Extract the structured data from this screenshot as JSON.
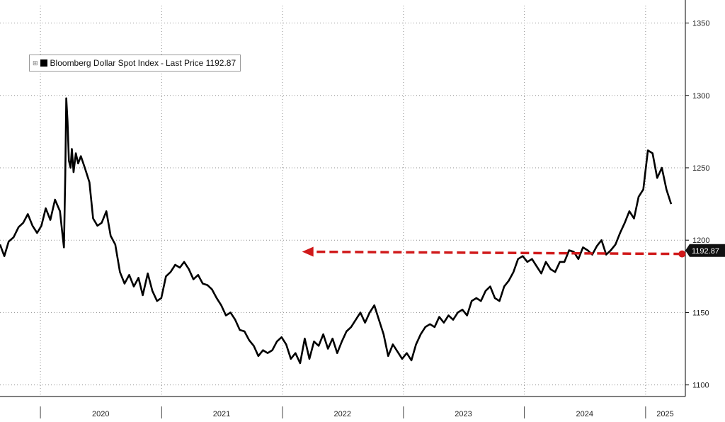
{
  "colors": {
    "line": "#000000",
    "arrow": "#d0191a",
    "grid": "#8f8f8f",
    "background": "#ffffff",
    "last_price_tag": "#111111"
  },
  "legend": {
    "toggle_icon": "square-plus-icon",
    "series_name": "Bloomberg Dollar Spot Index",
    "separator": "-",
    "metric": "Last Price",
    "value": "1192.87"
  },
  "chart_data": {
    "type": "line",
    "title": "",
    "xlabel": "",
    "ylabel": "",
    "legend_placement": "top-left",
    "grid": true,
    "y_axis_side": "right",
    "ylim": [
      1092,
      1362
    ],
    "xlim": [
      "2019-09-01",
      "2025-05-01"
    ],
    "y_ticks": [
      1100,
      1150,
      1200,
      1250,
      1300,
      1350
    ],
    "x_tick_labels": [
      {
        "label": "2020",
        "date": "2020-07-01"
      },
      {
        "label": "2021",
        "date": "2021-07-01"
      },
      {
        "label": "2022",
        "date": "2022-07-01"
      },
      {
        "label": "2023",
        "date": "2023-07-01"
      },
      {
        "label": "2024",
        "date": "2024-07-01"
      },
      {
        "label": "2025",
        "date": "2025-03-01"
      }
    ],
    "year_separators": [
      "2020-01-01",
      "2021-01-01",
      "2022-01-01",
      "2023-01-01",
      "2024-01-01",
      "2025-01-01"
    ],
    "last_price": {
      "label": "1192.87",
      "value": 1192.87,
      "date": "2025-04-21"
    },
    "annotation": {
      "type": "dashed-arrow",
      "from": {
        "date": "2025-04-21",
        "value": 1190.5
      },
      "to": {
        "date": "2022-03-01",
        "value": 1192
      }
    },
    "series": [
      {
        "name": "Bloomberg Dollar Spot Index",
        "points": [
          [
            "2019-09-01",
            1197
          ],
          [
            "2019-09-14",
            1189
          ],
          [
            "2019-09-27",
            1199
          ],
          [
            "2019-10-12",
            1202
          ],
          [
            "2019-10-27",
            1209
          ],
          [
            "2019-11-10",
            1212
          ],
          [
            "2019-11-24",
            1218
          ],
          [
            "2019-12-08",
            1210
          ],
          [
            "2019-12-22",
            1205
          ],
          [
            "2020-01-04",
            1210
          ],
          [
            "2020-01-17",
            1222
          ],
          [
            "2020-01-31",
            1214
          ],
          [
            "2020-02-14",
            1228
          ],
          [
            "2020-02-29",
            1220
          ],
          [
            "2020-03-07",
            1205
          ],
          [
            "2020-03-12",
            1195
          ],
          [
            "2020-03-16",
            1245
          ],
          [
            "2020-03-19",
            1298
          ],
          [
            "2020-03-23",
            1282
          ],
          [
            "2020-03-27",
            1255
          ],
          [
            "2020-04-01",
            1250
          ],
          [
            "2020-04-05",
            1263
          ],
          [
            "2020-04-10",
            1247
          ],
          [
            "2020-04-17",
            1260
          ],
          [
            "2020-04-24",
            1253
          ],
          [
            "2020-05-02",
            1258
          ],
          [
            "2020-05-14",
            1250
          ],
          [
            "2020-05-28",
            1240
          ],
          [
            "2020-06-08",
            1215
          ],
          [
            "2020-06-21",
            1210
          ],
          [
            "2020-07-04",
            1212
          ],
          [
            "2020-07-18",
            1220
          ],
          [
            "2020-07-31",
            1203
          ],
          [
            "2020-08-14",
            1197
          ],
          [
            "2020-08-28",
            1178
          ],
          [
            "2020-09-11",
            1170
          ],
          [
            "2020-09-25",
            1176
          ],
          [
            "2020-10-09",
            1168
          ],
          [
            "2020-10-23",
            1174
          ],
          [
            "2020-11-05",
            1162
          ],
          [
            "2020-11-20",
            1177
          ],
          [
            "2020-12-04",
            1165
          ],
          [
            "2020-12-18",
            1158
          ],
          [
            "2020-12-31",
            1160
          ],
          [
            "2021-01-14",
            1175
          ],
          [
            "2021-01-28",
            1178
          ],
          [
            "2021-02-11",
            1183
          ],
          [
            "2021-02-25",
            1181
          ],
          [
            "2021-03-10",
            1185
          ],
          [
            "2021-03-24",
            1180
          ],
          [
            "2021-04-07",
            1173
          ],
          [
            "2021-04-21",
            1176
          ],
          [
            "2021-05-05",
            1170
          ],
          [
            "2021-05-19",
            1169
          ],
          [
            "2021-06-02",
            1166
          ],
          [
            "2021-06-16",
            1160
          ],
          [
            "2021-06-30",
            1155
          ],
          [
            "2021-07-14",
            1148
          ],
          [
            "2021-07-28",
            1150
          ],
          [
            "2021-08-11",
            1145
          ],
          [
            "2021-08-25",
            1138
          ],
          [
            "2021-09-08",
            1137
          ],
          [
            "2021-09-22",
            1131
          ],
          [
            "2021-10-06",
            1127
          ],
          [
            "2021-10-20",
            1120
          ],
          [
            "2021-11-03",
            1124
          ],
          [
            "2021-11-17",
            1122
          ],
          [
            "2021-12-01",
            1124
          ],
          [
            "2021-12-15",
            1130
          ],
          [
            "2021-12-29",
            1133
          ],
          [
            "2022-01-12",
            1128
          ],
          [
            "2022-01-26",
            1118
          ],
          [
            "2022-02-09",
            1122
          ],
          [
            "2022-02-23",
            1115
          ],
          [
            "2022-03-09",
            1132
          ],
          [
            "2022-03-23",
            1118
          ],
          [
            "2022-04-06",
            1130
          ],
          [
            "2022-04-20",
            1127
          ],
          [
            "2022-05-04",
            1135
          ],
          [
            "2022-05-18",
            1125
          ],
          [
            "2022-06-01",
            1132
          ],
          [
            "2022-06-15",
            1122
          ],
          [
            "2022-06-29",
            1130
          ],
          [
            "2022-07-13",
            1137
          ],
          [
            "2022-07-27",
            1140
          ],
          [
            "2022-08-10",
            1145
          ],
          [
            "2022-08-24",
            1150
          ],
          [
            "2022-09-07",
            1143
          ],
          [
            "2022-09-21",
            1150
          ],
          [
            "2022-10-05",
            1155
          ],
          [
            "2022-10-19",
            1145
          ],
          [
            "2022-11-02",
            1135
          ],
          [
            "2022-11-16",
            1120
          ],
          [
            "2022-11-30",
            1128
          ],
          [
            "2022-12-14",
            1123
          ],
          [
            "2022-12-28",
            1118
          ],
          [
            "2023-01-11",
            1122
          ],
          [
            "2023-01-25",
            1117
          ],
          [
            "2023-02-08",
            1128
          ],
          [
            "2023-02-22",
            1135
          ],
          [
            "2023-03-08",
            1140
          ],
          [
            "2023-03-22",
            1142
          ],
          [
            "2023-04-05",
            1140
          ],
          [
            "2023-04-19",
            1147
          ],
          [
            "2023-05-03",
            1143
          ],
          [
            "2023-05-17",
            1148
          ],
          [
            "2023-05-31",
            1145
          ],
          [
            "2023-06-14",
            1150
          ],
          [
            "2023-06-28",
            1152
          ],
          [
            "2023-07-12",
            1148
          ],
          [
            "2023-07-26",
            1158
          ],
          [
            "2023-08-09",
            1160
          ],
          [
            "2023-08-23",
            1158
          ],
          [
            "2023-09-06",
            1165
          ],
          [
            "2023-09-20",
            1168
          ],
          [
            "2023-10-04",
            1160
          ],
          [
            "2023-10-18",
            1158
          ],
          [
            "2023-11-01",
            1168
          ],
          [
            "2023-11-15",
            1172
          ],
          [
            "2023-11-29",
            1178
          ],
          [
            "2023-12-13",
            1187
          ],
          [
            "2023-12-27",
            1189
          ],
          [
            "2024-01-10",
            1185
          ],
          [
            "2024-01-24",
            1187
          ],
          [
            "2024-02-07",
            1182
          ],
          [
            "2024-02-21",
            1177
          ],
          [
            "2024-03-06",
            1185
          ],
          [
            "2024-03-20",
            1180
          ],
          [
            "2024-04-03",
            1178
          ],
          [
            "2024-04-17",
            1185
          ],
          [
            "2024-05-01",
            1185
          ],
          [
            "2024-05-15",
            1193
          ],
          [
            "2024-05-29",
            1192
          ],
          [
            "2024-06-12",
            1187
          ],
          [
            "2024-06-26",
            1195
          ],
          [
            "2024-07-10",
            1193
          ],
          [
            "2024-07-24",
            1190
          ],
          [
            "2024-08-07",
            1196
          ],
          [
            "2024-08-21",
            1200
          ],
          [
            "2024-09-04",
            1190
          ],
          [
            "2024-09-18",
            1193
          ],
          [
            "2024-10-02",
            1197
          ],
          [
            "2024-10-16",
            1205
          ],
          [
            "2024-10-30",
            1212
          ],
          [
            "2024-11-13",
            1220
          ],
          [
            "2024-11-27",
            1215
          ],
          [
            "2024-12-11",
            1230
          ],
          [
            "2024-12-25",
            1235
          ],
          [
            "2025-01-08",
            1262
          ],
          [
            "2025-01-22",
            1260
          ],
          [
            "2025-02-05",
            1243
          ],
          [
            "2025-02-19",
            1250
          ],
          [
            "2025-03-05",
            1235
          ],
          [
            "2025-03-19",
            1225
          ]
        ]
      }
    ]
  }
}
